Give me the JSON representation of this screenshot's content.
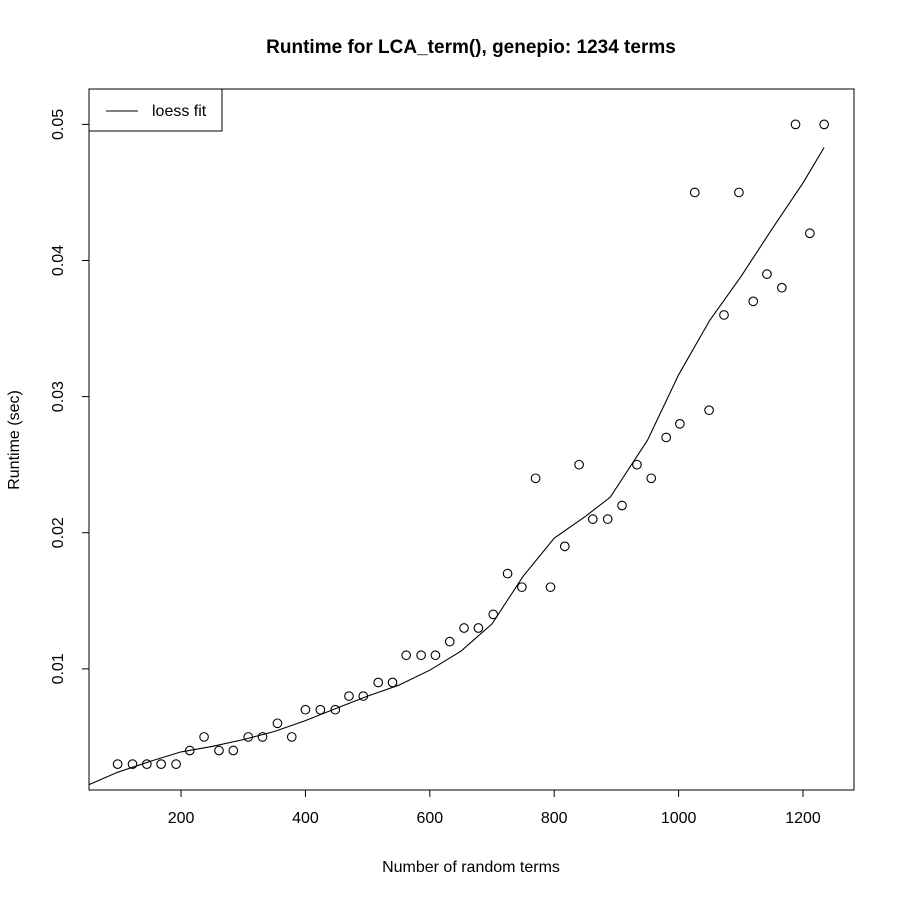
{
  "chart_data": {
    "type": "scatter",
    "title": "Runtime for LCA_term(), genepio: 1234 terms",
    "xlabel": "Number of random terms",
    "ylabel": "Runtime (sec)",
    "xlim": [
      52,
      1282
    ],
    "ylim": [
      0.0011,
      0.0526
    ],
    "x_ticks": [
      200,
      400,
      600,
      800,
      1000,
      1200
    ],
    "y_ticks": [
      0.01,
      0.02,
      0.03,
      0.04,
      0.05
    ],
    "x_tick_labels": [
      "200",
      "400",
      "600",
      "800",
      "1000",
      "1200"
    ],
    "y_tick_labels": [
      "0.01",
      "0.02",
      "0.03",
      "0.04",
      "0.05"
    ],
    "grid": false,
    "legend": {
      "position": "top-left",
      "entries": [
        {
          "label": "loess fit",
          "style": "line"
        }
      ]
    },
    "series": [
      {
        "style": "points",
        "x": [
          98,
          122,
          145,
          168,
          192,
          214,
          237,
          261,
          284,
          308,
          331,
          355,
          378,
          400,
          424,
          448,
          470,
          493,
          517,
          540,
          562,
          586,
          609,
          632,
          655,
          678,
          702,
          725,
          748,
          770,
          794,
          817,
          840,
          862,
          886,
          909,
          933,
          956,
          980,
          1002,
          1026,
          1049,
          1073,
          1097,
          1120,
          1142,
          1166,
          1188,
          1211,
          1234
        ],
        "y": [
          0.003,
          0.003,
          0.003,
          0.003,
          0.003,
          0.004,
          0.005,
          0.004,
          0.004,
          0.005,
          0.005,
          0.006,
          0.005,
          0.007,
          0.007,
          0.007,
          0.008,
          0.008,
          0.009,
          0.009,
          0.011,
          0.011,
          0.011,
          0.012,
          0.013,
          0.013,
          0.014,
          0.017,
          0.016,
          0.024,
          0.016,
          0.019,
          0.025,
          0.021,
          0.021,
          0.022,
          0.025,
          0.024,
          0.027,
          0.028,
          0.045,
          0.029,
          0.036,
          0.045,
          0.037,
          0.039,
          0.038,
          0.05,
          0.042,
          0.05
        ]
      },
      {
        "name": "loess fit",
        "style": "line",
        "x": [
          52,
          98,
          150,
          200,
          250,
          300,
          350,
          400,
          450,
          500,
          550,
          600,
          650,
          700,
          750,
          800,
          850,
          890,
          950,
          1000,
          1050,
          1100,
          1150,
          1200,
          1234
        ],
        "y": [
          0.0015,
          0.0024,
          0.0032,
          0.0039,
          0.0043,
          0.0048,
          0.0054,
          0.0062,
          0.0071,
          0.008,
          0.0088,
          0.0099,
          0.0113,
          0.0133,
          0.0168,
          0.0196,
          0.0212,
          0.0226,
          0.0268,
          0.0316,
          0.0356,
          0.0388,
          0.0423,
          0.0457,
          0.0483
        ]
      }
    ]
  }
}
